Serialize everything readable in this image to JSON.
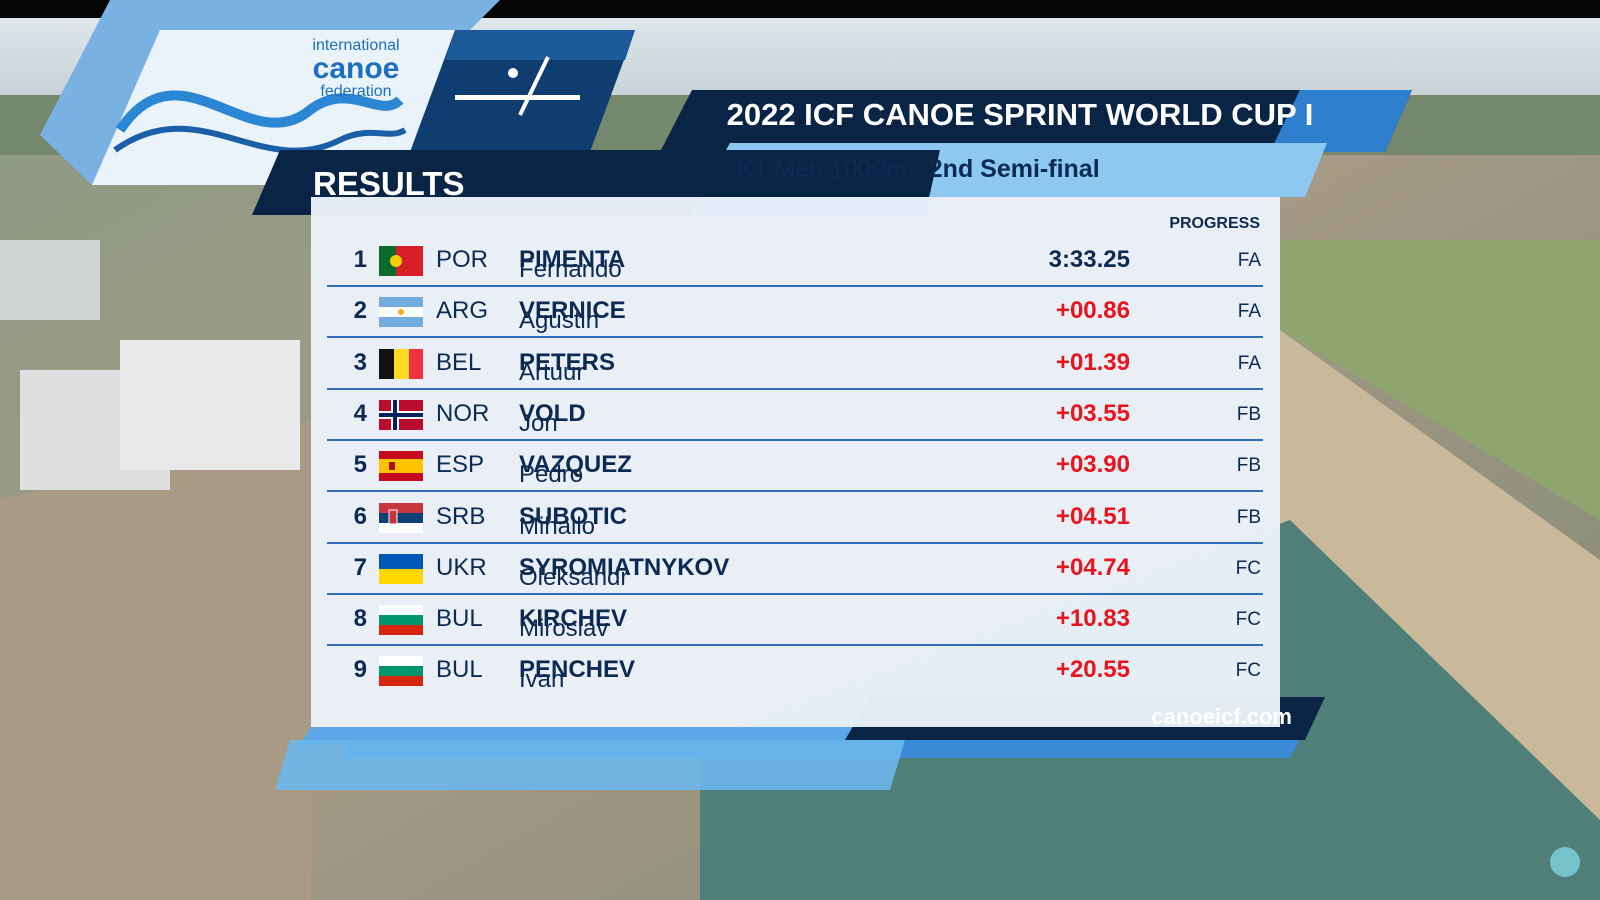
{
  "logo": {
    "line1": "international",
    "line2": "canoe",
    "line3": "federation"
  },
  "header": {
    "label": "RESULTS",
    "title": "2022 ICF CANOE SPRINT WORLD CUP I",
    "event": "K1 Men 1000m",
    "separator": "-",
    "phase": "2nd Semi-final"
  },
  "table": {
    "progress_header": "PROGRESS",
    "rows": [
      {
        "rank": 1,
        "code": "POR",
        "first": "Fernando",
        "last": "PIMENTA",
        "time": "3:33.25",
        "progress": "FA"
      },
      {
        "rank": 2,
        "code": "ARG",
        "first": "Agustin",
        "last": "VERNICE",
        "time": "+00.86",
        "progress": "FA"
      },
      {
        "rank": 3,
        "code": "BEL",
        "first": "Artuur",
        "last": "PETERS",
        "time": "+01.39",
        "progress": "FA"
      },
      {
        "rank": 4,
        "code": "NOR",
        "first": "Jon",
        "last": "VOLD",
        "time": "+03.55",
        "progress": "FB"
      },
      {
        "rank": 5,
        "code": "ESP",
        "first": "Pedro",
        "last": "VAZQUEZ",
        "time": "+03.90",
        "progress": "FB"
      },
      {
        "rank": 6,
        "code": "SRB",
        "first": "Mihailo",
        "last": "SUBOTIC",
        "time": "+04.51",
        "progress": "FB"
      },
      {
        "rank": 7,
        "code": "UKR",
        "first": "Oleksandr",
        "last": "SYROMIATNYKOV",
        "time": "+04.74",
        "progress": "FC"
      },
      {
        "rank": 8,
        "code": "BUL",
        "first": "Miroslav",
        "last": "KIRCHEV",
        "time": "+10.83",
        "progress": "FC"
      },
      {
        "rank": 9,
        "code": "BUL",
        "first": "Ivan",
        "last": "PENCHEV",
        "time": "+20.55",
        "progress": "FC"
      }
    ]
  },
  "footer": {
    "url": "canoeicf.com"
  }
}
